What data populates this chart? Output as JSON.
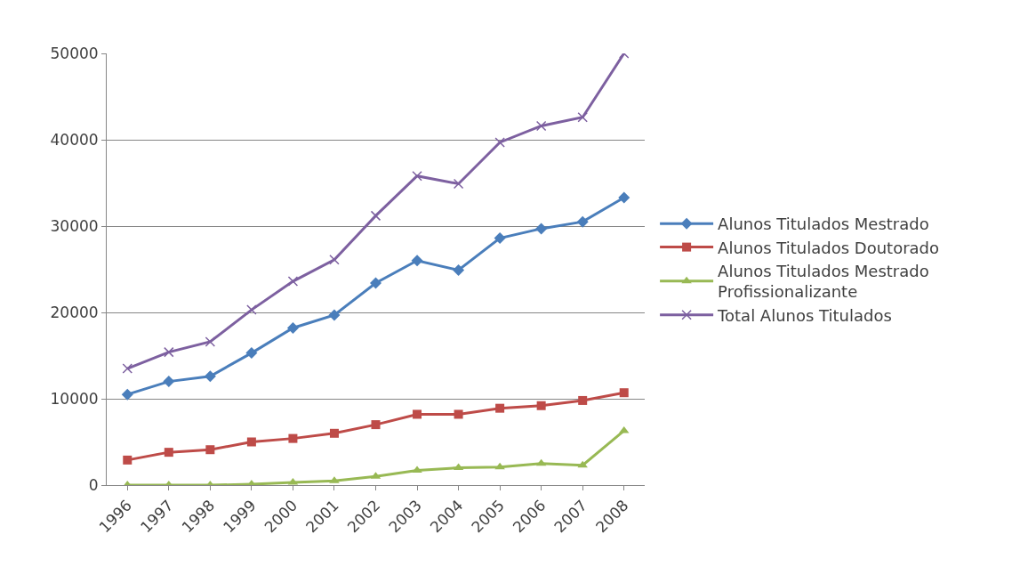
{
  "chart_data": {
    "type": "line",
    "categories": [
      "1996",
      "1997",
      "1998",
      "1999",
      "2000",
      "2001",
      "2002",
      "2003",
      "2004",
      "2005",
      "2006",
      "2007",
      "2008"
    ],
    "series": [
      {
        "name": "Alunos Titulados Mestrado",
        "color": "#4a7ebb",
        "marker": "diamond",
        "values": [
          10500,
          12000,
          12600,
          15300,
          18200,
          19700,
          23400,
          26000,
          24900,
          28600,
          29700,
          30500,
          33300
        ]
      },
      {
        "name": "Alunos Titulados Doutorado",
        "color": "#be4b48",
        "marker": "square",
        "values": [
          2900,
          3800,
          4100,
          5000,
          5400,
          6000,
          7000,
          8200,
          8200,
          8900,
          9200,
          9800,
          10700
        ]
      },
      {
        "name": "Alunos Titulados Mestrado Profissionalizante",
        "color": "#98b954",
        "marker": "triangle",
        "values": [
          0,
          0,
          0,
          100,
          300,
          500,
          1000,
          1700,
          2000,
          2100,
          2500,
          2300,
          6300
        ]
      },
      {
        "name": "Total Alunos Titulados",
        "color": "#7d60a0",
        "marker": "cross",
        "values": [
          13500,
          15400,
          16600,
          20300,
          23600,
          26100,
          31200,
          35800,
          34900,
          39700,
          41600,
          42600,
          50000
        ]
      }
    ],
    "ylim": [
      0,
      50000
    ],
    "yticks": [
      0,
      10000,
      20000,
      30000,
      40000,
      50000
    ],
    "grid": "y",
    "legend": "right"
  }
}
